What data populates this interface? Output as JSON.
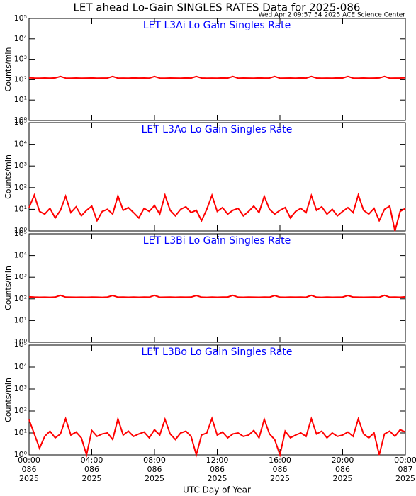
{
  "chart_data": {
    "type": "line",
    "title": "LET ahead Lo-Gain SINGLES RATES Data for 2025-086",
    "subtitle": "Wed Apr  2 09:57:54 2025 ACE Science Center",
    "xlabel": "UTC Day of Year",
    "ylabel": "Counts/min",
    "log_y": true,
    "xlim": [
      0,
      1440
    ],
    "xticks": [
      {
        "value": 0,
        "label": "00:00 086 2025"
      },
      {
        "value": 240,
        "label": "04:00 086 2025"
      },
      {
        "value": 480,
        "label": "08:00 086 2025"
      },
      {
        "value": 720,
        "label": "12:00 086 2025"
      },
      {
        "value": 960,
        "label": "16:00 086 2025"
      },
      {
        "value": 1200,
        "label": "20:00 086 2025"
      },
      {
        "value": 1440,
        "label": "00:00 087 2025"
      }
    ],
    "ylim": [
      1,
      100000
    ],
    "yticks": [
      {
        "value": 1,
        "label": "10⁰"
      },
      {
        "value": 10,
        "label": "10¹"
      },
      {
        "value": 100,
        "label": "10²"
      },
      {
        "value": 1000,
        "label": "10³"
      },
      {
        "value": 10000,
        "label": "10⁴"
      },
      {
        "value": 100000,
        "label": "10⁵"
      }
    ],
    "x": [
      0,
      20,
      40,
      60,
      80,
      100,
      120,
      140,
      160,
      180,
      200,
      220,
      240,
      260,
      280,
      300,
      320,
      340,
      360,
      380,
      400,
      420,
      440,
      460,
      480,
      500,
      520,
      540,
      560,
      580,
      600,
      620,
      640,
      660,
      680,
      700,
      720,
      740,
      760,
      780,
      800,
      820,
      840,
      860,
      880,
      900,
      920,
      940,
      960,
      980,
      1000,
      1020,
      1040,
      1060,
      1080,
      1100,
      1120,
      1140,
      1160,
      1180,
      1200,
      1220,
      1240,
      1260,
      1280,
      1300,
      1320,
      1340,
      1360,
      1380,
      1400,
      1420,
      1440
    ],
    "series": [
      {
        "name": "LET L3Ai Lo Gain Singles Rate",
        "color": "#ff0000",
        "values": [
          125,
          120,
          118,
          121,
          119,
          122,
          145,
          120,
          119,
          121,
          118,
          120,
          122,
          119,
          120,
          121,
          145,
          119,
          120,
          118,
          122,
          120,
          121,
          119,
          145,
          120,
          118,
          121,
          120,
          119,
          122,
          120,
          145,
          121,
          119,
          120,
          118,
          122,
          120,
          145,
          119,
          121,
          120,
          118,
          122,
          120,
          121,
          145,
          119,
          120,
          121,
          118,
          122,
          120,
          145,
          121,
          119,
          120,
          118,
          122,
          121,
          145,
          120,
          119,
          121,
          118,
          120,
          122,
          145,
          119,
          120,
          121,
          125
        ]
      },
      {
        "name": "LET L3Ao Lo Gain Singles Rate",
        "color": "#ff0000",
        "values": [
          12,
          45,
          8,
          6,
          11,
          4,
          9,
          40,
          7,
          13,
          5,
          9,
          14,
          3,
          8,
          10,
          6,
          42,
          9,
          12,
          7,
          4,
          11,
          8,
          15,
          6,
          45,
          9,
          5,
          10,
          13,
          7,
          9,
          3,
          10,
          44,
          8,
          12,
          6,
          9,
          11,
          5,
          8,
          14,
          7,
          40,
          10,
          6,
          9,
          12,
          4,
          8,
          11,
          7,
          43,
          9,
          13,
          6,
          10,
          5,
          8,
          12,
          7,
          46,
          9,
          6,
          11,
          3,
          10,
          14,
          1,
          8,
          11
        ]
      },
      {
        "name": "LET L3Bi Lo Gain Singles Rate",
        "color": "#ff0000",
        "values": [
          124,
          121,
          119,
          120,
          118,
          121,
          146,
          121,
          120,
          119,
          120,
          119,
          121,
          120,
          118,
          122,
          144,
          120,
          121,
          119,
          121,
          119,
          122,
          120,
          146,
          119,
          120,
          122,
          119,
          121,
          120,
          121,
          144,
          120,
          118,
          121,
          119,
          121,
          122,
          146,
          120,
          119,
          121,
          120,
          119,
          122,
          120,
          144,
          120,
          119,
          122,
          120,
          121,
          119,
          146,
          120,
          118,
          121,
          119,
          120,
          122,
          144,
          121,
          120,
          119,
          120,
          121,
          119,
          146,
          120,
          121,
          119,
          124
        ]
      },
      {
        "name": "LET L3Bo Lo Gain Singles Rate",
        "color": "#ff0000",
        "values": [
          40,
          9,
          2,
          7,
          12,
          6,
          9,
          45,
          8,
          11,
          6,
          1,
          13,
          7,
          9,
          10,
          5,
          44,
          8,
          12,
          7,
          9,
          11,
          6,
          14,
          8,
          42,
          9,
          5,
          10,
          12,
          7,
          1,
          8,
          10,
          46,
          8,
          11,
          6,
          9,
          10,
          7,
          8,
          13,
          6,
          42,
          9,
          5,
          1,
          12,
          6,
          8,
          10,
          7,
          45,
          9,
          12,
          6,
          10,
          7,
          8,
          11,
          7,
          44,
          9,
          6,
          10,
          1,
          9,
          12,
          7,
          14,
          11
        ]
      }
    ]
  }
}
